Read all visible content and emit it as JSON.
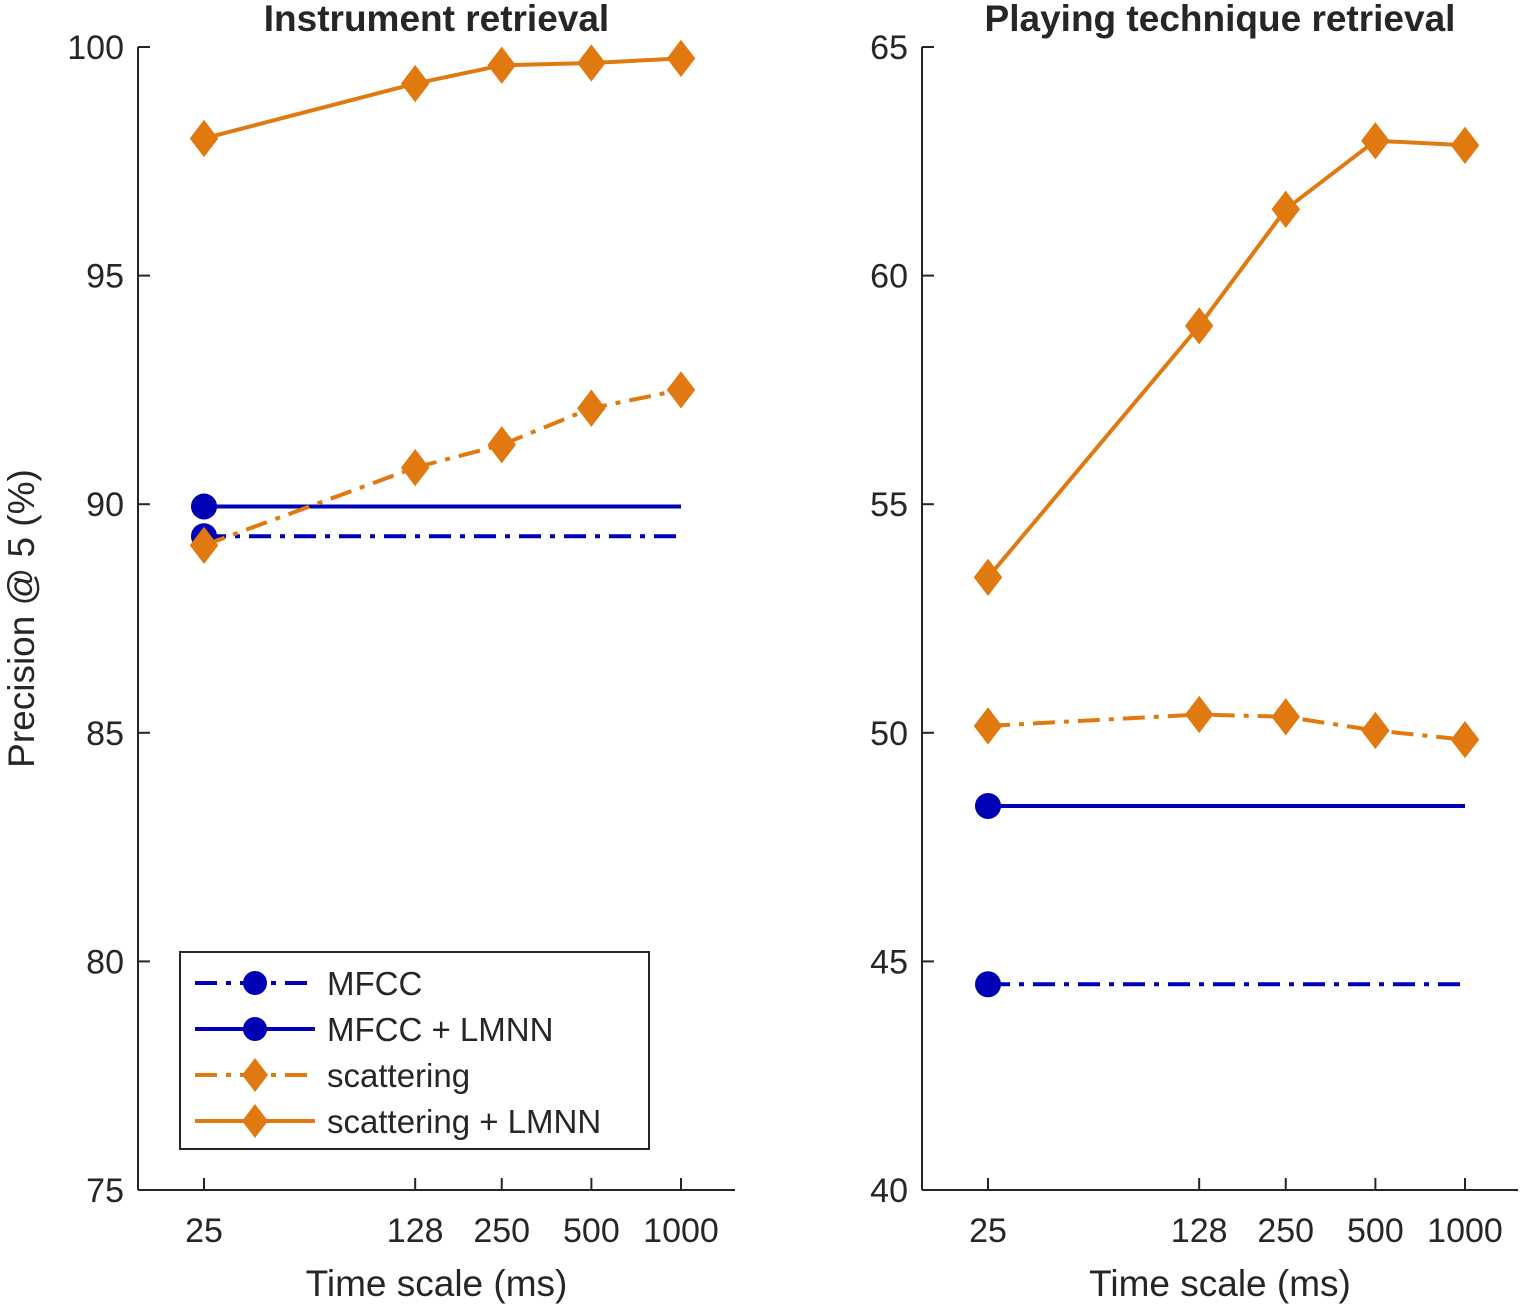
{
  "chart_data": [
    {
      "type": "line",
      "title": "Instrument retrieval",
      "xlabel": "Time scale (ms)",
      "ylabel": "Precision @ 5 (%)",
      "x_scale": "log",
      "x": [
        25,
        128,
        250,
        500,
        1000
      ],
      "xticks": [
        "25",
        "128",
        "250",
        "500",
        "1000"
      ],
      "ylim": [
        75,
        100
      ],
      "yticks": [
        "75",
        "80",
        "85",
        "90",
        "95",
        "100"
      ],
      "grid": false,
      "legend_position": "bottom-left",
      "series": [
        {
          "name": "MFCC",
          "color": "#0000b4",
          "line": "dashdot",
          "marker": "circle",
          "values": [
            89.3,
            89.3,
            89.3,
            89.3,
            89.3
          ],
          "marker_at": [
            25
          ]
        },
        {
          "name": "MFCC + LMNN",
          "color": "#0000b4",
          "line": "solid",
          "marker": "circle",
          "values": [
            89.95,
            89.95,
            89.95,
            89.95,
            89.95
          ],
          "marker_at": [
            25
          ]
        },
        {
          "name": "scattering",
          "color": "#e07a10",
          "line": "dashdot",
          "marker": "diamond",
          "values": [
            89.1,
            90.8,
            91.3,
            92.1,
            92.5
          ],
          "marker_at": [
            25,
            128,
            250,
            500,
            1000
          ]
        },
        {
          "name": "scattering + LMNN",
          "color": "#e07a10",
          "line": "solid",
          "marker": "diamond",
          "values": [
            98.0,
            99.2,
            99.6,
            99.65,
            99.75
          ],
          "marker_at": [
            25,
            128,
            250,
            500,
            1000
          ]
        }
      ]
    },
    {
      "type": "line",
      "title": "Playing technique retrieval",
      "xlabel": "Time scale (ms)",
      "ylabel": "",
      "x_scale": "log",
      "x": [
        25,
        128,
        250,
        500,
        1000
      ],
      "xticks": [
        "25",
        "128",
        "250",
        "500",
        "1000"
      ],
      "ylim": [
        40,
        65
      ],
      "yticks": [
        "40",
        "45",
        "50",
        "55",
        "60",
        "65"
      ],
      "grid": false,
      "series": [
        {
          "name": "MFCC",
          "color": "#0000b4",
          "line": "dashdot",
          "marker": "circle",
          "values": [
            44.5,
            44.5,
            44.5,
            44.5,
            44.5
          ],
          "marker_at": [
            25
          ]
        },
        {
          "name": "MFCC + LMNN",
          "color": "#0000b4",
          "line": "solid",
          "marker": "circle",
          "values": [
            48.4,
            48.4,
            48.4,
            48.4,
            48.4
          ],
          "marker_at": [
            25
          ]
        },
        {
          "name": "scattering",
          "color": "#e07a10",
          "line": "dashdot",
          "marker": "diamond",
          "values": [
            50.15,
            50.4,
            50.35,
            50.05,
            49.85
          ],
          "marker_at": [
            25,
            128,
            250,
            500,
            1000
          ]
        },
        {
          "name": "scattering + LMNN",
          "color": "#e07a10",
          "line": "solid",
          "marker": "diamond",
          "values": [
            53.4,
            58.9,
            61.45,
            62.95,
            62.85
          ],
          "marker_at": [
            25,
            128,
            250,
            500,
            1000
          ]
        }
      ]
    }
  ],
  "legend": {
    "entries": [
      "MFCC",
      "MFCC + LMNN",
      "scattering",
      "scattering + LMNN"
    ]
  }
}
